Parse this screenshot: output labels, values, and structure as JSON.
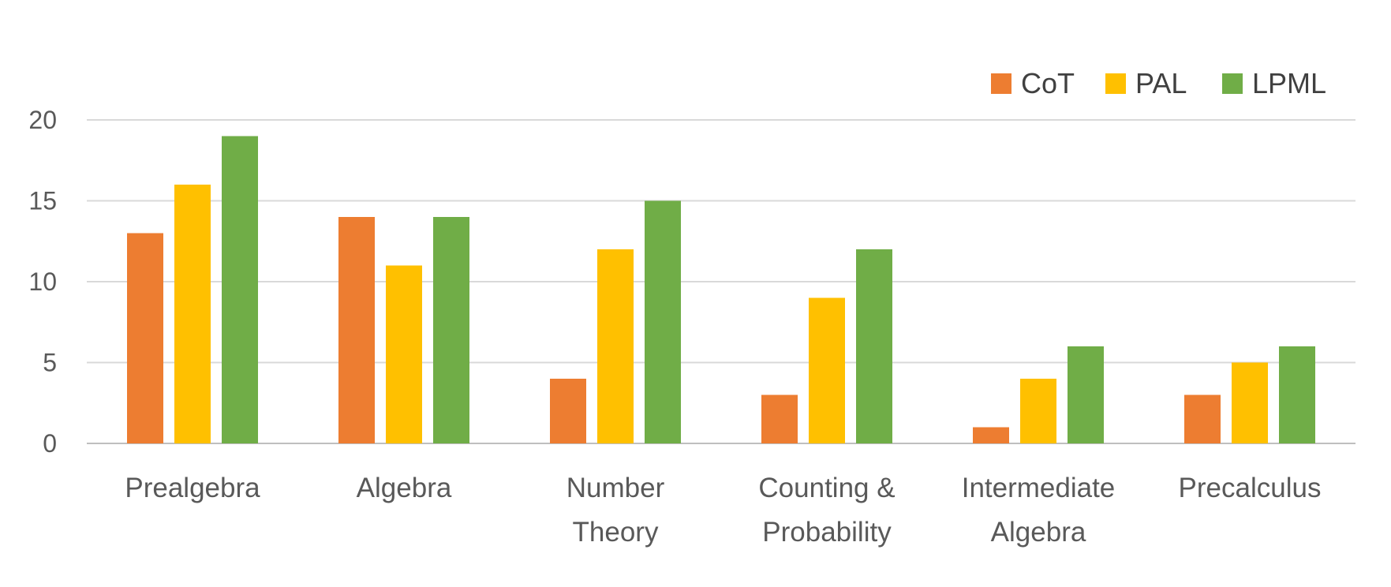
{
  "chart_data": {
    "type": "bar",
    "categories": [
      [
        "Prealgebra"
      ],
      [
        "Algebra"
      ],
      [
        "Number",
        "Theory"
      ],
      [
        "Counting &",
        "Probability"
      ],
      [
        "Intermediate",
        "Algebra"
      ],
      [
        "Precalculus"
      ]
    ],
    "series": [
      {
        "name": "CoT",
        "color": "#ED7D31",
        "values": [
          13,
          14,
          4,
          3,
          1,
          3
        ]
      },
      {
        "name": "PAL",
        "color": "#FFC000",
        "values": [
          16,
          11,
          12,
          9,
          4,
          5
        ]
      },
      {
        "name": "LPML",
        "color": "#70AD47",
        "values": [
          19,
          14,
          15,
          12,
          6,
          6
        ]
      }
    ],
    "yticks": [
      0,
      5,
      10,
      15,
      20
    ],
    "ylim": [
      0,
      20
    ],
    "grid": true,
    "legend_position": "top-right"
  }
}
